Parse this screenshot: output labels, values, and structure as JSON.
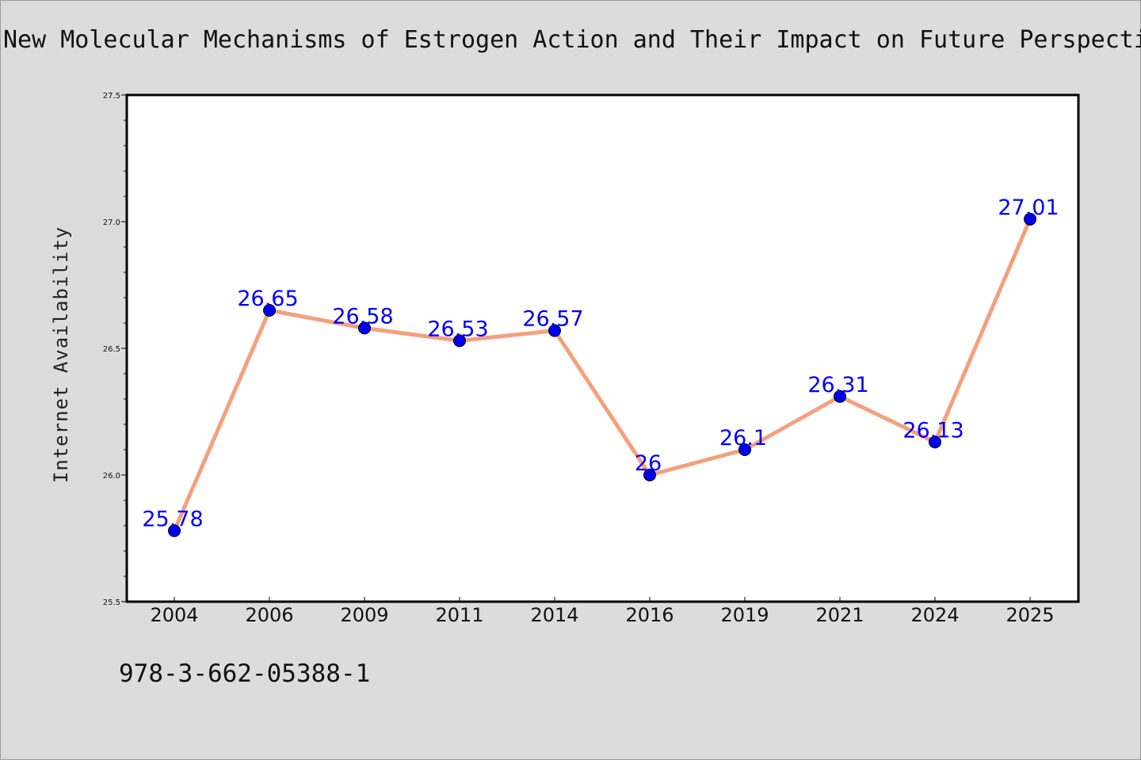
{
  "title": "New Molecular Mechanisms of Estrogen Action and Their Impact on Future Perspectives",
  "isbn": "978-3-662-05388-1",
  "colors": {
    "line": "#f4a07c",
    "marker": "#0000ee",
    "data_label": "#0000ff",
    "background": "#dcdcdc",
    "plot_background": "#ffffff"
  },
  "chart_data": {
    "type": "line",
    "title": "New Molecular Mechanisms of Estrogen Action and Their Impact on Future Perspectives",
    "xlabel": "",
    "ylabel": "Internet Availability",
    "categories": [
      "2004",
      "2006",
      "2009",
      "2011",
      "2014",
      "2016",
      "2019",
      "2021",
      "2024",
      "2025"
    ],
    "series": [
      {
        "values": [
          25.78,
          26.65,
          26.58,
          26.53,
          26.57,
          26,
          26.1,
          26.31,
          26.13,
          27.01
        ]
      }
    ],
    "data_labels": [
      "25.78",
      "26.65",
      "26.58",
      "26.53",
      "26.57",
      "26",
      "26.1",
      "26.31",
      "26.13",
      "27.01"
    ],
    "ylim": [
      25.5,
      27.5
    ],
    "yticks": [
      "25.5",
      "26.0",
      "26.5",
      "27.0",
      "27.5"
    ],
    "grid": false,
    "legend": "none"
  }
}
